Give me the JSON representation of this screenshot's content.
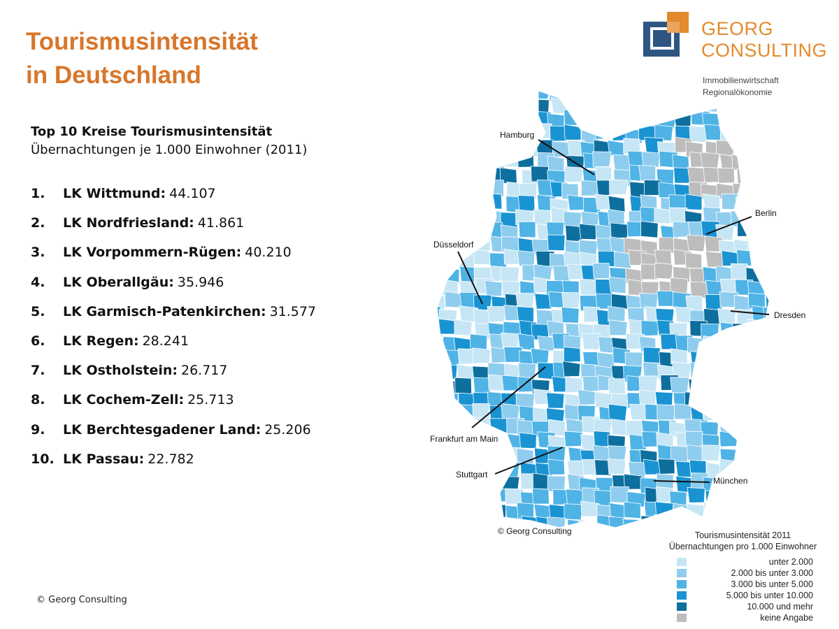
{
  "title": {
    "line1": "Tourismusintensität",
    "line2": "in Deutschland"
  },
  "subhead": {
    "title": "Top 10 Kreise Tourismusintensität",
    "subtitle": "Übernachtungen je 1.000 Einwohner (2011)"
  },
  "ranking": [
    {
      "rank": "1.",
      "name": "LK Wittmund:",
      "value": "44.107"
    },
    {
      "rank": "2.",
      "name": "LK Nordfriesland:",
      "value": "41.861"
    },
    {
      "rank": "3.",
      "name": "LK Vorpommern-Rügen:",
      "value": "40.210"
    },
    {
      "rank": "4.",
      "name": "LK Oberallgäu:",
      "value": "35.946"
    },
    {
      "rank": "5.",
      "name": "LK Garmisch-Patenkirchen:",
      "value": "31.577"
    },
    {
      "rank": "6.",
      "name": "LK Regen:",
      "value": "28.241"
    },
    {
      "rank": "7.",
      "name": "LK Ostholstein:",
      "value": "26.717"
    },
    {
      "rank": "8.",
      "name": "LK Cochem-Zell:",
      "value": "25.713"
    },
    {
      "rank": "9.",
      "name": "LK Berchtesgadener Land:",
      "value": "25.206"
    },
    {
      "rank": "10.",
      "name": "LK Passau:",
      "value": "22.782"
    }
  ],
  "footer": {
    "copyright": "© Georg Consulting"
  },
  "logo": {
    "line1": "GEORG",
    "line2": "CONSULTING",
    "tagline1": "Immobilienwirtschaft",
    "tagline2": "Regionalökonomie",
    "orange": "#e38a2d",
    "blue": "#2f5583"
  },
  "map": {
    "copyright": "© Georg Consulting",
    "cities": {
      "hamburg": "Hamburg",
      "berlin": "Berlin",
      "duesseldorf": "Düsseldorf",
      "dresden": "Dresden",
      "frankfurt": "Frankfurt am Main",
      "stuttgart": "Stuttgart",
      "muenchen": "München"
    },
    "legend": {
      "title": "Tourismusintensität 2011",
      "subtitle": "Übernachtungen pro 1.000 Einwohner",
      "classes": [
        {
          "label": "unter 2.000",
          "color": "#c6e6f5"
        },
        {
          "label": "2.000 bis unter 3.000",
          "color": "#8fcdee"
        },
        {
          "label": "3.000 bis unter 5.000",
          "color": "#4fb3e6"
        },
        {
          "label": "5.000 bis unter 10.000",
          "color": "#1a93d2"
        },
        {
          "label": "10.000 und mehr",
          "color": "#0e6f9f"
        },
        {
          "label": "keine Angabe",
          "color": "#bdbdbd"
        }
      ]
    }
  }
}
